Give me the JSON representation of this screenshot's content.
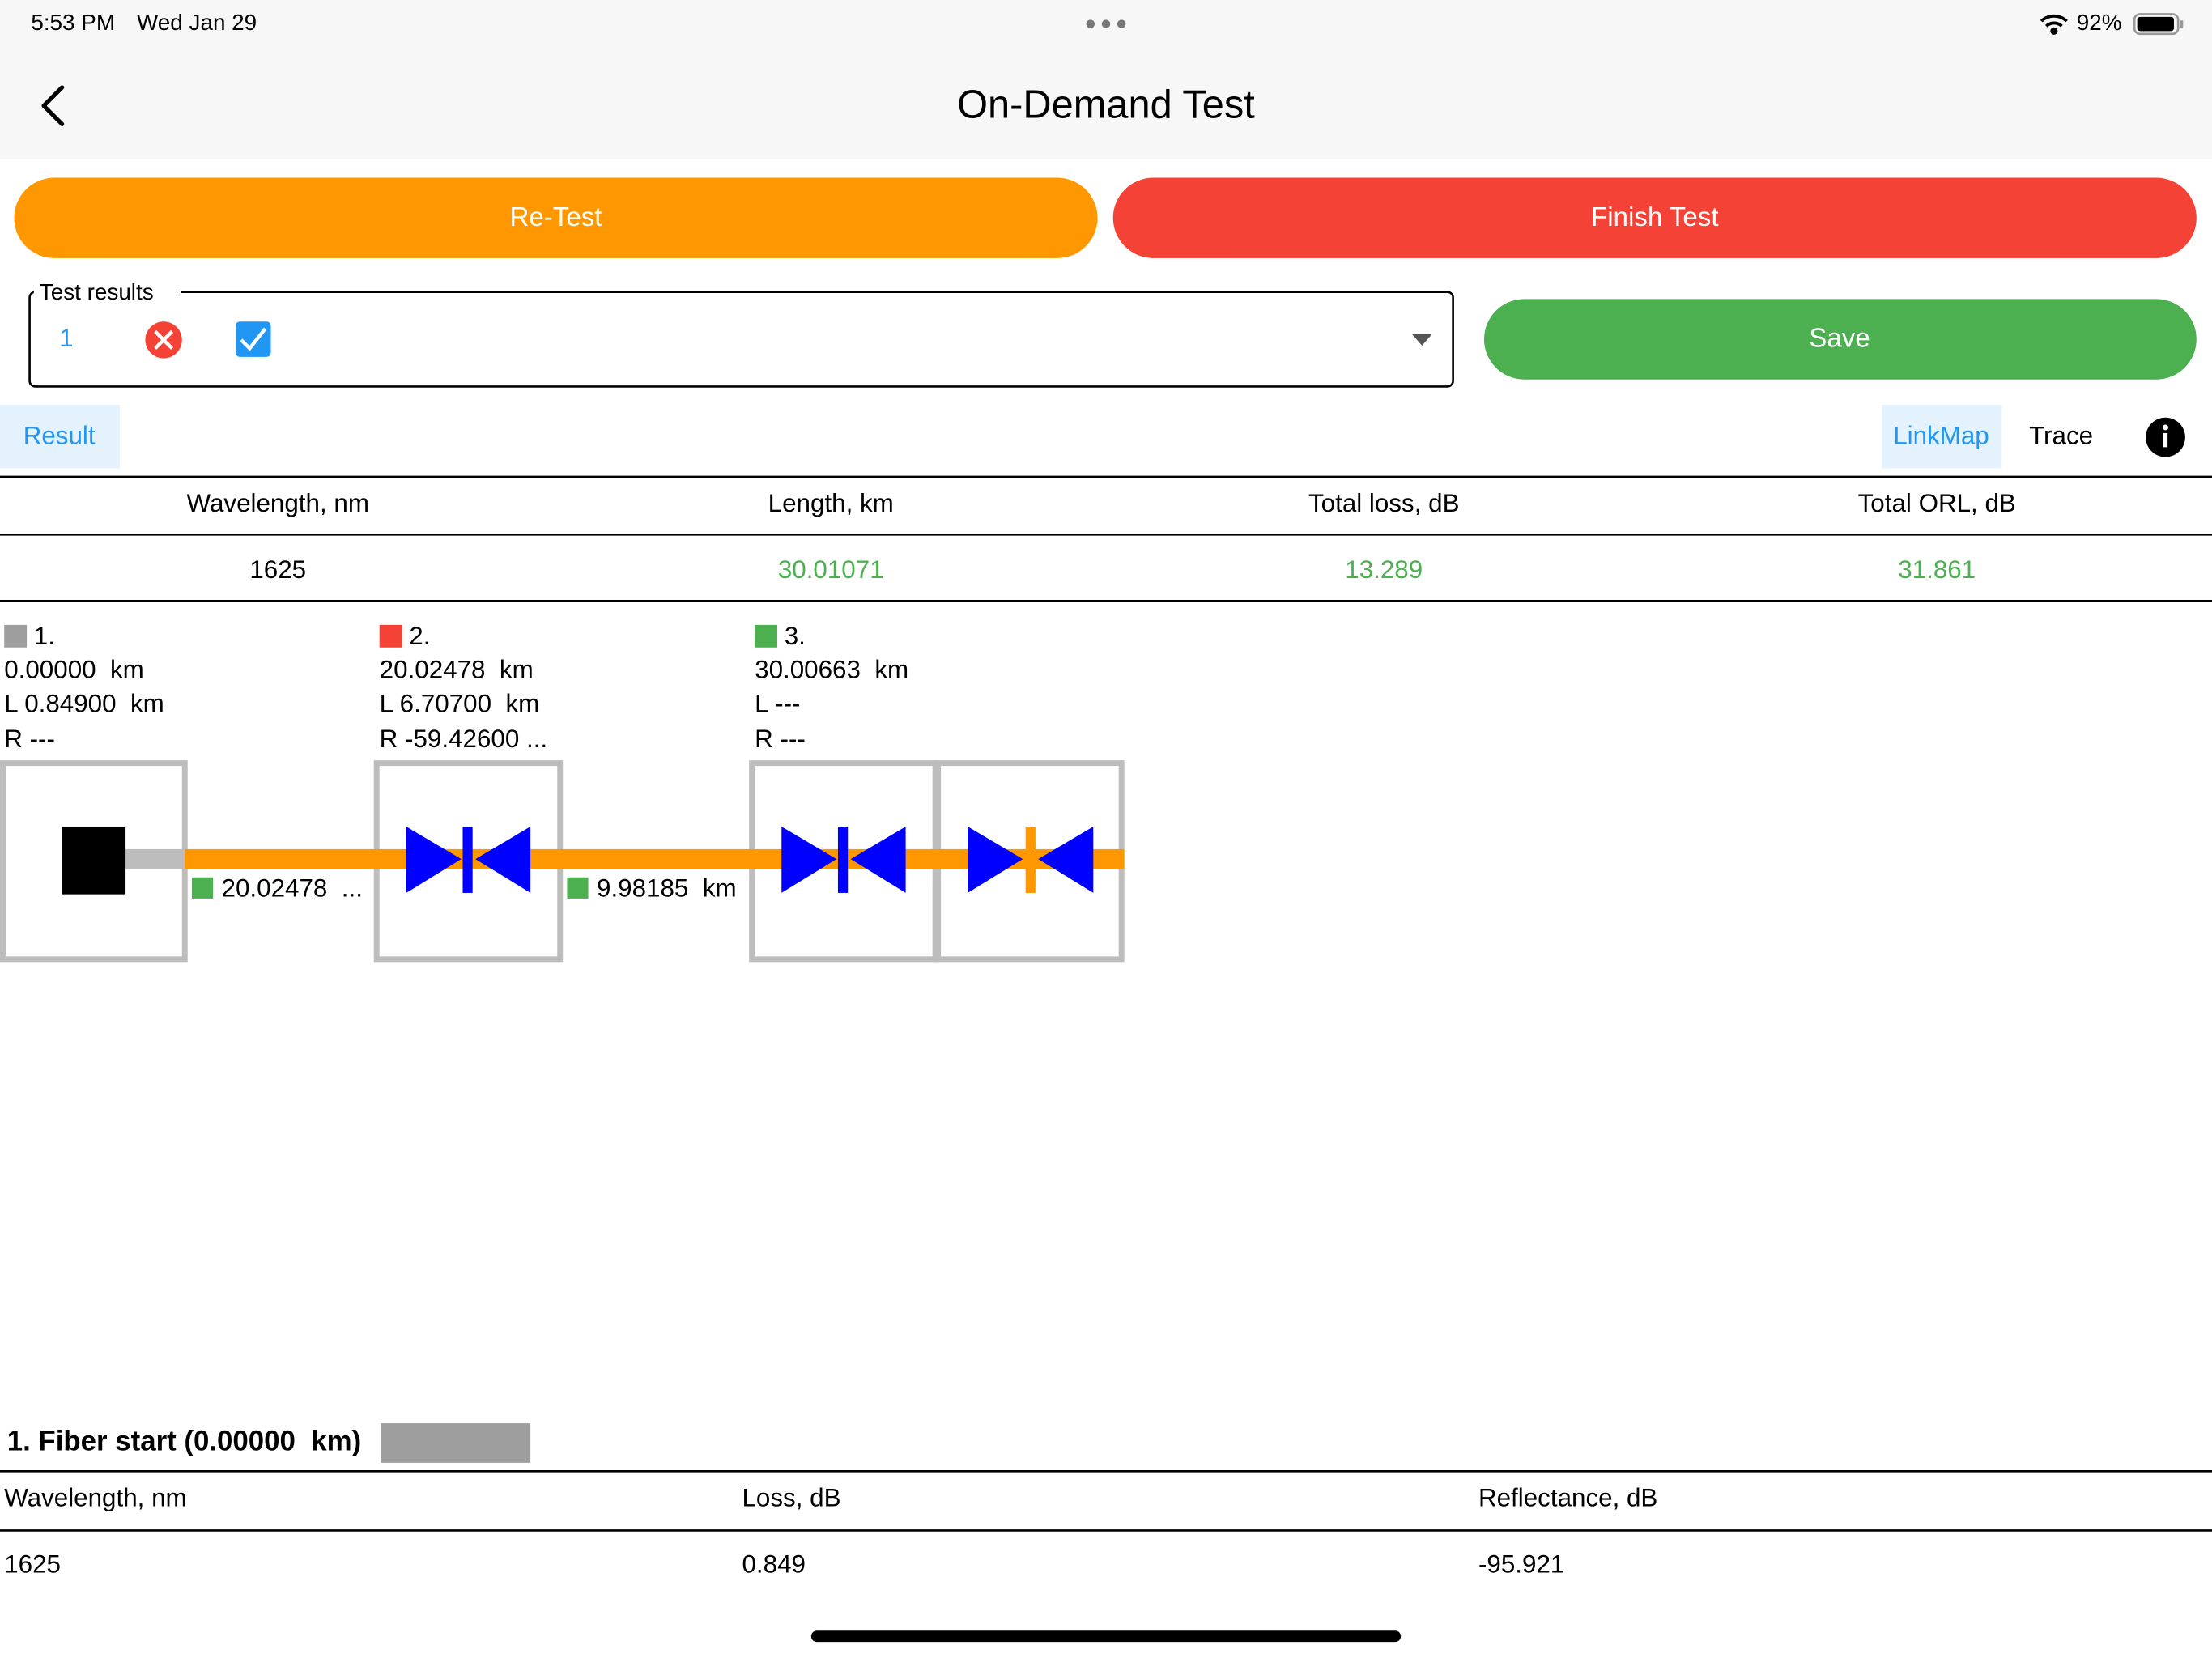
{
  "status_bar": {
    "time": "5:53 PM",
    "date": "Wed Jan 29",
    "battery": "92%"
  },
  "header": {
    "title": "On-Demand Test"
  },
  "buttons": {
    "retest": "Re-Test",
    "finish": "Finish Test",
    "save": "Save"
  },
  "test_results": {
    "label": "Test results",
    "value": "1"
  },
  "tabs": {
    "result": "Result",
    "linkmap": "LinkMap",
    "trace": "Trace"
  },
  "summary": {
    "headers": [
      "Wavelength, nm",
      "Length, km",
      "Total loss, dB",
      "Total ORL, dB"
    ],
    "row": [
      "1625",
      "30.01071",
      "13.289",
      "31.861"
    ]
  },
  "events": [
    {
      "label": "1.",
      "position": "0.00000  km",
      "loss": "L 0.84900  km",
      "reflectance": "R ---"
    },
    {
      "label": "2.",
      "position": "20.02478  km",
      "loss": "L 6.70700  km",
      "reflectance": "R -59.42600 ..."
    },
    {
      "label": "3.",
      "position": "30.00663  km",
      "loss": "L ---",
      "reflectance": "R ---"
    }
  ],
  "segments": [
    "20.02478  ...",
    "9.98185  km"
  ],
  "detail": {
    "title": "1. Fiber start (0.00000  km)",
    "headers": [
      "Wavelength, nm",
      "Loss, dB",
      "Reflectance, dB"
    ],
    "row": [
      "1625",
      "0.849",
      "-95.921"
    ]
  }
}
